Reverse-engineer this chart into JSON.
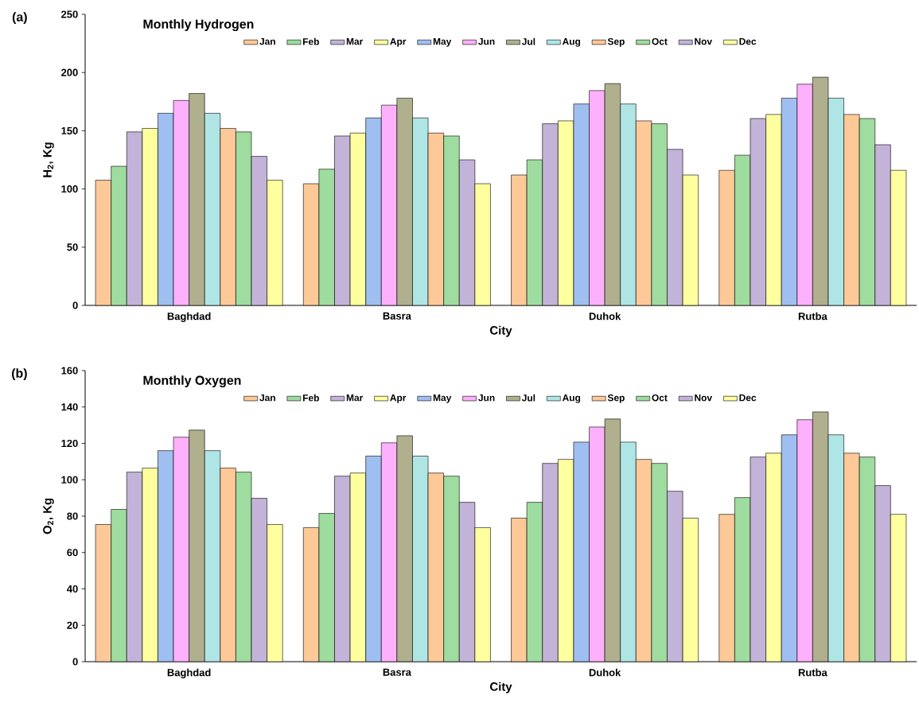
{
  "chart_data": [
    {
      "type": "bar",
      "legend_title": "Monthly Hydrogen",
      "xlabel": "City",
      "ylabel": "H$_{2}$, Kg",
      "annotations": [
        "(a)"
      ],
      "categories": [
        "Baghdad",
        "Basra",
        "Duhok",
        "Rutba"
      ],
      "ylim": [
        0,
        250
      ],
      "yticks": [
        0,
        50,
        100,
        150,
        200,
        250
      ],
      "legend": "top",
      "series": [
        {
          "name": "Jan",
          "color": "#fdc998",
          "values": [
            107.5,
            104.5,
            112,
            116
          ]
        },
        {
          "name": "Feb",
          "color": "#9fdc9f",
          "values": [
            119.5,
            117,
            125,
            129
          ]
        },
        {
          "name": "Mar",
          "color": "#c4b3d8",
          "values": [
            149,
            145.5,
            156,
            160.5
          ]
        },
        {
          "name": "Apr",
          "color": "#ffff9f",
          "values": [
            152,
            148,
            158.5,
            164
          ]
        },
        {
          "name": "May",
          "color": "#9fbff0",
          "values": [
            165,
            161,
            173,
            178
          ]
        },
        {
          "name": "Jun",
          "color": "#fdb0fb",
          "values": [
            176,
            172,
            184.5,
            190
          ]
        },
        {
          "name": "Jul",
          "color": "#b0b08f",
          "values": [
            182,
            178,
            190.5,
            196
          ]
        },
        {
          "name": "Aug",
          "color": "#b0e5e5",
          "values": [
            165,
            161,
            173,
            178
          ]
        },
        {
          "name": "Sep",
          "color": "#fdc998",
          "values": [
            152,
            148,
            158.5,
            164
          ]
        },
        {
          "name": "Oct",
          "color": "#9fdc9f",
          "values": [
            149,
            145.5,
            156,
            160.5
          ]
        },
        {
          "name": "Nov",
          "color": "#c4b3d8",
          "values": [
            128,
            125,
            134,
            138
          ]
        },
        {
          "name": "Dec",
          "color": "#ffff9f",
          "values": [
            107.5,
            104.5,
            112,
            116
          ]
        }
      ]
    },
    {
      "type": "bar",
      "legend_title": "Monthly Oxygen",
      "xlabel": "City",
      "ylabel": "O$_{2}$, Kg",
      "annotations": [
        "(b)"
      ],
      "categories": [
        "Baghdad",
        "Basra",
        "Duhok",
        "Rutba"
      ],
      "ylim": [
        0,
        160
      ],
      "yticks": [
        0,
        20,
        40,
        60,
        80,
        100,
        120,
        140,
        160
      ],
      "legend": "top",
      "series": [
        {
          "name": "Jan",
          "color": "#fdc998",
          "values": [
            75.4,
            73.7,
            78.9,
            81
          ]
        },
        {
          "name": "Feb",
          "color": "#9fdc9f",
          "values": [
            83.7,
            81.5,
            87.6,
            90.2
          ]
        },
        {
          "name": "Mar",
          "color": "#c4b3d8",
          "values": [
            104.2,
            102,
            109,
            112.5
          ]
        },
        {
          "name": "Apr",
          "color": "#ffff9f",
          "values": [
            106.4,
            103.7,
            111.2,
            114.6
          ]
        },
        {
          "name": "May",
          "color": "#9fbff0",
          "values": [
            116,
            113,
            120.7,
            124.7
          ]
        },
        {
          "name": "Jun",
          "color": "#fdb0fb",
          "values": [
            123.4,
            120.3,
            129,
            133
          ]
        },
        {
          "name": "Jul",
          "color": "#b0b08f",
          "values": [
            127.3,
            124.2,
            133.4,
            137.3
          ]
        },
        {
          "name": "Aug",
          "color": "#b0e5e5",
          "values": [
            116,
            113,
            120.7,
            124.7
          ]
        },
        {
          "name": "Sep",
          "color": "#fdc998",
          "values": [
            106.4,
            103.7,
            111.2,
            114.6
          ]
        },
        {
          "name": "Oct",
          "color": "#9fdc9f",
          "values": [
            104.2,
            102,
            109,
            112.5
          ]
        },
        {
          "name": "Nov",
          "color": "#c4b3d8",
          "values": [
            89.8,
            87.6,
            93.7,
            96.8
          ]
        },
        {
          "name": "Dec",
          "color": "#ffff9f",
          "values": [
            75.4,
            73.7,
            78.9,
            81
          ]
        }
      ]
    }
  ]
}
